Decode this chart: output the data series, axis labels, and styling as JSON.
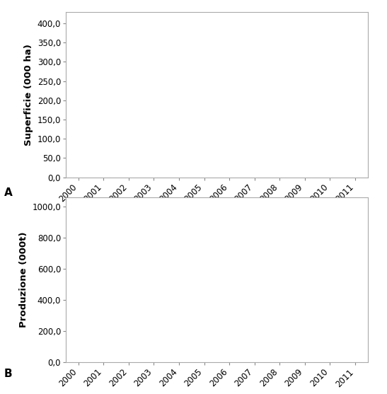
{
  "panel_A": {
    "ylabel": "Superficie (000 ha)",
    "yticks": [
      0.0,
      50.0,
      100.0,
      150.0,
      200.0,
      250.0,
      300.0,
      350.0,
      400.0
    ],
    "ylim": [
      0.0,
      430.0
    ],
    "panel_label": "A"
  },
  "panel_B": {
    "ylabel": "Produzione (000t)",
    "yticks": [
      0.0,
      200.0,
      400.0,
      600.0,
      800.0,
      1000.0
    ],
    "ylim": [
      0.0,
      1060.0
    ],
    "panel_label": "B"
  },
  "years": [
    "2000",
    "2001",
    "2002",
    "2003",
    "2004",
    "2005",
    "2006",
    "2007",
    "2008",
    "2009",
    "2010",
    "2011"
  ],
  "bg_color": "#ffffff",
  "border_color": "#aaaaaa",
  "tick_color": "#888888",
  "label_color": "#000000",
  "font_size_tick": 8.5,
  "font_size_ylabel": 9.5,
  "font_size_panel_label": 11
}
